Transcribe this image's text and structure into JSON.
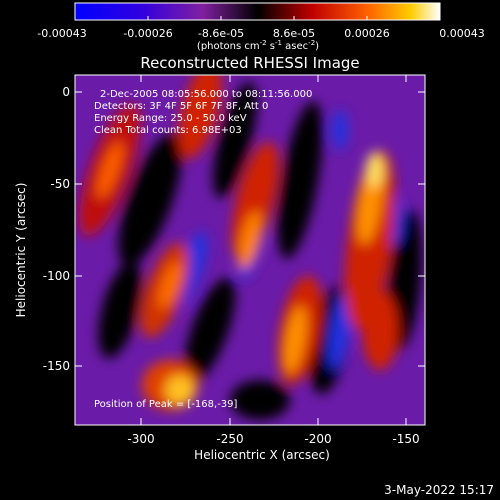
{
  "colorbar": {
    "ticks": [
      "-0.00043",
      "-0.00026",
      "-8.6e-05",
      "8.6e-05",
      "0.00026",
      "0.00043"
    ],
    "unit_label": "(photons cm",
    "unit_exp1": "-2",
    "unit_mid": " s",
    "unit_exp2": "-1",
    "unit_mid2": " asec",
    "unit_exp3": "-2",
    "unit_end": ")"
  },
  "title": "Reconstructed RHESSI Image",
  "info": {
    "line1": "2-Dec-2005 08:05:56.000 to 08:11:56.000",
    "line2": "Detectors: 3F 4F 5F 6F 7F 8F, Att 0",
    "line3": "Energy Range: 25.0 - 50.0 keV",
    "line4": "Clean     Total counts: 6.98E+03",
    "peak": "Position of Peak = [-168,-39]"
  },
  "axes": {
    "xlabel": "Heliocentric X (arcsec)",
    "ylabel": "Heliocentric Y (arcsec)",
    "xticks": [
      "-300",
      "-250",
      "-200",
      "-150"
    ],
    "yticks": [
      "0",
      "-50",
      "-100",
      "-150"
    ]
  },
  "footer_date": "3-May-2022 15:17"
}
